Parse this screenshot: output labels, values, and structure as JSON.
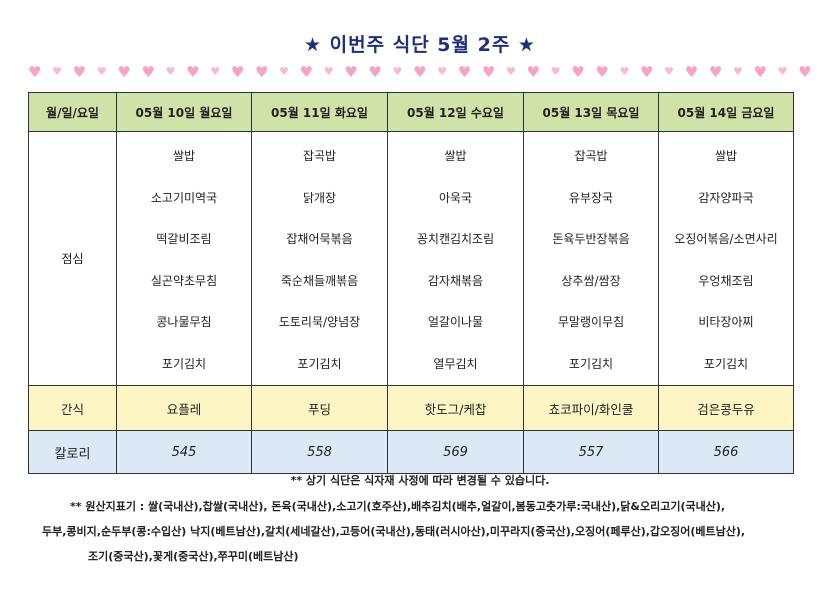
{
  "title": "★ 이번주 식단 5월 2주 ★",
  "header": {
    "corner": "월/일/요일",
    "days": [
      "05월 10일 월요일",
      "05월 11일 화요일",
      "05월 12일 수요일",
      "05월 13일 목요일",
      "05월 14일 금요일"
    ]
  },
  "lunch": {
    "label": "점심",
    "days": [
      [
        "쌀밥",
        "소고기미역국",
        "떡갈비조림",
        "실곤약초무침",
        "콩나물무침",
        "포기김치"
      ],
      [
        "잡곡밥",
        "닭개장",
        "잡채어묵볶음",
        "죽순채들깨볶음",
        "도토리묵/양념장",
        "포기김치"
      ],
      [
        "쌀밥",
        "아욱국",
        "꽁치캔김치조림",
        "감자채볶음",
        "얼갈이나물",
        "열무김치"
      ],
      [
        "잡곡밥",
        "유부장국",
        "돈육두반장볶음",
        "상추쌈/쌈장",
        "무말랭이무침",
        "포기김치"
      ],
      [
        "쌀밥",
        "감자양파국",
        "오징어볶음/소면사리",
        "우엉채조림",
        "비타장아찌",
        "포기김치"
      ]
    ]
  },
  "snack": {
    "label": "간식",
    "items": [
      "요플레",
      "푸딩",
      "핫도그/케찹",
      "쵸코파이/화인쿨",
      "검은콩두유"
    ]
  },
  "calorie": {
    "label": "칼로리",
    "values": [
      "545",
      "558",
      "569",
      "557",
      "566"
    ]
  },
  "notes": {
    "line1": "** 상기 식단은 식자재 사정에 따라 변경될 수 있습니다.",
    "line2": "** 원산지표기 : 쌀(국내산),찹쌀(국내산), 돈육(국내산),소고기(호주산),배추김치(배추,얼갈이,봄동고춧가루:국내산),닭&오리고기(국내산),",
    "line3": "두부,콩비지,순두부(콩:수입산) 낙지(베트남산),갈치(세네갈산),고등어(국내산),동태(러시아산),미꾸라지(중국산),오징어(페루산),갑오징어(베트남산),",
    "line4": "조기(중국산),꽃게(중국산),쭈꾸미(베트남산)"
  }
}
